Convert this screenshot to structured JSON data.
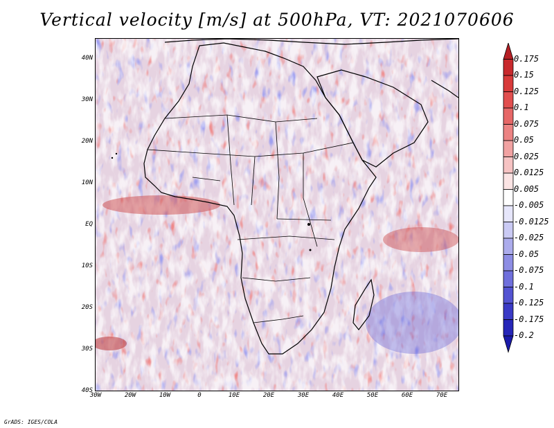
{
  "title": "Vertical velocity [m/s] at 500hPa, VT: 2021070606",
  "footer": "GrADS: IGES/COLA",
  "map": {
    "lat_ticks": [
      "40N",
      "30N",
      "20N",
      "10N",
      "EQ",
      "10S",
      "20S",
      "30S",
      "40S"
    ],
    "lon_ticks": [
      "30W",
      "20W",
      "10W",
      "0",
      "10E",
      "20E",
      "30E",
      "40E",
      "50E",
      "60E",
      "70E"
    ],
    "lon_range": [
      -30,
      75
    ],
    "lat_range": [
      -40,
      45
    ]
  },
  "colorbar": {
    "levels": [
      "0.175",
      "0.15",
      "0.125",
      "0.1",
      "0.075",
      "0.05",
      "0.025",
      "0.0125",
      "0.005",
      "-0.005",
      "-0.0125",
      "-0.025",
      "-0.05",
      "-0.075",
      "-0.1",
      "-0.125",
      "-0.175",
      "-0.2"
    ],
    "colors": [
      "#b51e24",
      "#c8292d",
      "#d83a3a",
      "#e14e4e",
      "#e66767",
      "#ec8383",
      "#f1a2a2",
      "#f6c3c3",
      "#fbe4e4",
      "#ffffff",
      "#e6e6fb",
      "#cacaf4",
      "#acacec",
      "#8d8de4",
      "#6f6fdc",
      "#5353d2",
      "#3a3ac6",
      "#2626b8",
      "#1a1aaa"
    ]
  }
}
